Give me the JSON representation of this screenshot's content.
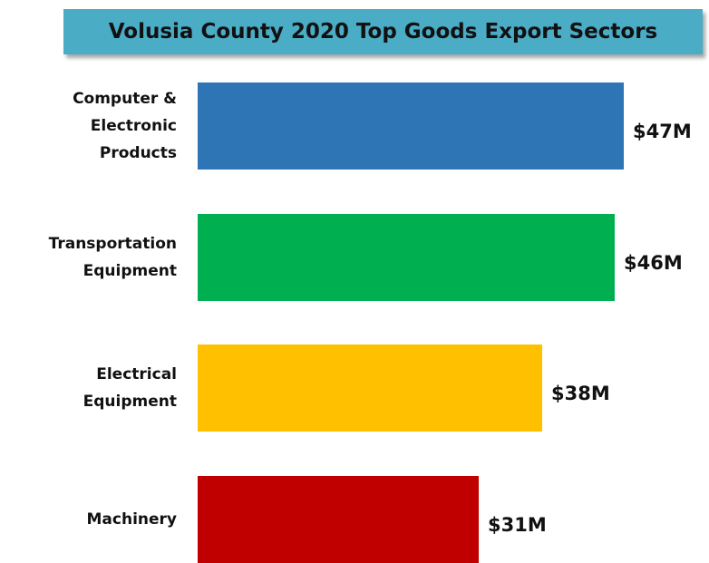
{
  "chart_data": {
    "type": "bar",
    "orientation": "horizontal",
    "title": "Volusia County 2020 Top Goods Export Sectors",
    "categories": [
      "Computer & Electronic Products",
      "Transportation Equipment",
      "Electrical Equipment",
      "Machinery"
    ],
    "values": [
      47,
      46,
      38,
      31
    ],
    "value_labels": [
      "$47M",
      "$46M",
      "$38M",
      "$31M"
    ],
    "colors": [
      "#2e75b6",
      "#00b050",
      "#ffc000",
      "#c00000"
    ]
  }
}
